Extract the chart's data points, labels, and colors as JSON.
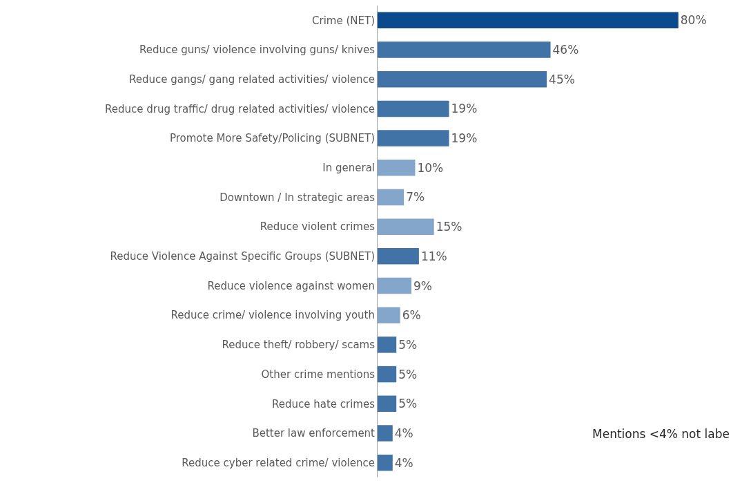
{
  "chart_data": {
    "type": "bar",
    "orientation": "horizontal",
    "tick_labels": "y",
    "categories": [
      "Crime (NET)",
      "Reduce guns/ violence involving guns/ knives",
      "Reduce gangs/ gang related activities/ violence",
      "Reduce drug traffic/ drug related activities/ violence",
      "Promote More Safety/Policing (SUBNET)",
      "In general",
      "Downtown / In strategic areas",
      "Reduce violent crimes",
      "Reduce Violence Against Specific Groups (SUBNET)",
      "Reduce violence against women",
      "Reduce crime/ violence involving youth",
      "Reduce theft/ robbery/ scams",
      "Other crime mentions",
      "Reduce hate crimes",
      "Better law enforcement",
      "Reduce cyber related crime/ violence"
    ],
    "values": [
      80,
      46,
      45,
      19,
      19,
      10,
      7,
      15,
      11,
      9,
      6,
      5,
      5,
      5,
      4,
      4
    ],
    "value_labels": [
      "80%",
      "46%",
      "45%",
      "19%",
      "19%",
      "10%",
      "7%",
      "15%",
      "11%",
      "9%",
      "6%",
      "5%",
      "5%",
      "5%",
      "4%",
      "4%"
    ],
    "colors": [
      "#0b4a8d",
      "#4173a7",
      "#4173a7",
      "#4173a7",
      "#4173a7",
      "#84a6ca",
      "#84a6ca",
      "#84a6ca",
      "#4173a7",
      "#84a6ca",
      "#84a6ca",
      "#4173a7",
      "#4173a7",
      "#4173a7",
      "#4173a7",
      "#4173a7"
    ],
    "xlim": [
      0,
      94
    ],
    "annotations": [
      "Mentions <4% not labe"
    ]
  }
}
